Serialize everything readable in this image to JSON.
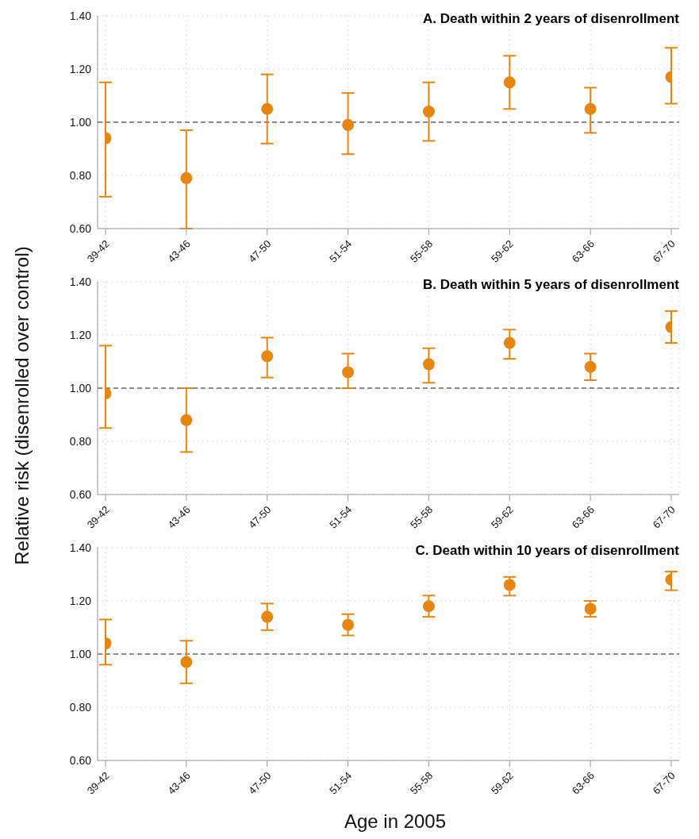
{
  "chart_data": [
    {
      "type": "scatter",
      "title": "A. Death within 2 years of disenrollment",
      "categories": [
        "39-42",
        "43-46",
        "47-50",
        "51-54",
        "55-58",
        "59-62",
        "63-66",
        "67-70"
      ],
      "series": [
        {
          "color": "#e8850c",
          "values": [
            0.94,
            0.79,
            1.05,
            0.99,
            1.04,
            1.15,
            1.05,
            1.17
          ],
          "errors": [
            [
              0.72,
              1.15
            ],
            [
              0.6,
              0.97
            ],
            [
              0.92,
              1.18
            ],
            [
              0.88,
              1.11
            ],
            [
              0.93,
              1.15
            ],
            [
              1.05,
              1.25
            ],
            [
              0.96,
              1.13
            ],
            [
              1.07,
              1.28
            ]
          ]
        }
      ],
      "ylim": [
        0.6,
        1.4
      ],
      "yticks": [
        {
          "value": 0.6,
          "label": "0.60"
        },
        {
          "value": 0.8,
          "label": "0.80"
        },
        {
          "value": 1,
          "label": "1.00"
        },
        {
          "value": 1.2,
          "label": "1.20"
        },
        {
          "value": 1.4,
          "label": "1.40"
        }
      ],
      "ref_lines": [
        {
          "axis": "y",
          "value": 1,
          "line_style": "dashed",
          "color": "#666666"
        }
      ],
      "grid": true,
      "marker": "circle"
    },
    {
      "type": "scatter",
      "title": "B. Death within 5 years of disenrollment",
      "ylabel": "Relative risk (disenrolled over control)",
      "categories": [
        "39-42",
        "43-46",
        "47-50",
        "51-54",
        "55-58",
        "59-62",
        "63-66",
        "67-70"
      ],
      "series": [
        {
          "color": "#e8850c",
          "values": [
            0.98,
            0.88,
            1.12,
            1.06,
            1.09,
            1.17,
            1.08,
            1.23
          ],
          "errors": [
            [
              0.85,
              1.16
            ],
            [
              0.76,
              1.0
            ],
            [
              1.04,
              1.19
            ],
            [
              1.0,
              1.13
            ],
            [
              1.02,
              1.15
            ],
            [
              1.11,
              1.22
            ],
            [
              1.03,
              1.13
            ],
            [
              1.17,
              1.29
            ]
          ]
        }
      ],
      "ylim": [
        0.6,
        1.4
      ],
      "yticks": [
        {
          "value": 0.6,
          "label": "0.60"
        },
        {
          "value": 0.8,
          "label": "0.80"
        },
        {
          "value": 1,
          "label": "1.00"
        },
        {
          "value": 1.2,
          "label": "1.20"
        },
        {
          "value": 1.4,
          "label": "1.40"
        }
      ],
      "ref_lines": [
        {
          "axis": "y",
          "value": 1,
          "line_style": "dashed",
          "color": "#666666"
        }
      ],
      "grid": true,
      "marker": "circle"
    },
    {
      "type": "scatter",
      "title": "C. Death within 10 years of disenrollment",
      "xlabel": "Age in 2005",
      "categories": [
        "39-42",
        "43-46",
        "47-50",
        "51-54",
        "55-58",
        "59-62",
        "63-66",
        "67-70"
      ],
      "series": [
        {
          "color": "#e8850c",
          "values": [
            1.04,
            0.97,
            1.14,
            1.11,
            1.18,
            1.26,
            1.17,
            1.28
          ],
          "errors": [
            [
              0.96,
              1.13
            ],
            [
              0.89,
              1.05
            ],
            [
              1.09,
              1.19
            ],
            [
              1.07,
              1.15
            ],
            [
              1.14,
              1.22
            ],
            [
              1.22,
              1.29
            ],
            [
              1.14,
              1.2
            ],
            [
              1.24,
              1.31
            ]
          ]
        }
      ],
      "ylim": [
        0.6,
        1.4
      ],
      "yticks": [
        {
          "value": 0.6,
          "label": "0.60"
        },
        {
          "value": 0.8,
          "label": "0.80"
        },
        {
          "value": 1,
          "label": "1.00"
        },
        {
          "value": 1.2,
          "label": "1.20"
        },
        {
          "value": 1.4,
          "label": "1.40"
        }
      ],
      "ref_lines": [
        {
          "axis": "y",
          "value": 1,
          "line_style": "dashed",
          "color": "#666666"
        }
      ],
      "grid": true,
      "marker": "circle"
    }
  ]
}
